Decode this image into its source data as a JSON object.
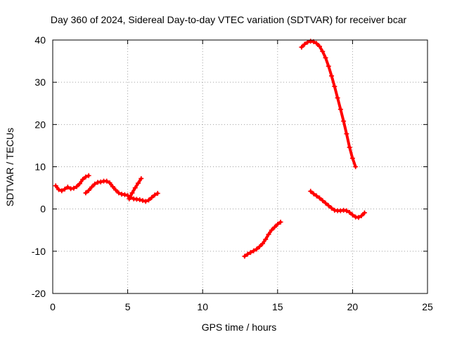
{
  "chart_data": {
    "type": "scatter",
    "title": "Day 360 of 2024, Sidereal Day-to-day VTEC variation (SDTVAR) for receiver bcar",
    "xlabel": "GPS time / hours",
    "ylabel": "SDTVAR / TECUs",
    "xlim": [
      0,
      25
    ],
    "ylim": [
      -20,
      40
    ],
    "xticks": [
      0,
      5,
      10,
      15,
      20,
      25
    ],
    "yticks": [
      -20,
      -10,
      0,
      10,
      20,
      30,
      40
    ],
    "grid": true,
    "legend": "none",
    "marker": "plus",
    "color": "#ff0000",
    "segments": [
      [
        [
          0.2,
          5.5
        ],
        [
          0.4,
          4.6
        ],
        [
          0.6,
          4.3
        ],
        [
          0.8,
          4.7
        ],
        [
          1.0,
          5.2
        ],
        [
          1.2,
          4.8
        ],
        [
          1.4,
          4.9
        ],
        [
          1.6,
          5.3
        ],
        [
          1.8,
          6.0
        ],
        [
          2.0,
          7.0
        ],
        [
          2.2,
          7.6
        ],
        [
          2.4,
          7.9
        ]
      ],
      [
        [
          2.2,
          3.8
        ],
        [
          2.4,
          4.4
        ],
        [
          2.6,
          5.2
        ],
        [
          2.8,
          5.9
        ],
        [
          3.0,
          6.3
        ],
        [
          3.2,
          6.4
        ],
        [
          3.4,
          6.6
        ],
        [
          3.6,
          6.6
        ],
        [
          3.8,
          6.2
        ],
        [
          4.0,
          5.3
        ],
        [
          4.2,
          4.5
        ],
        [
          4.4,
          3.8
        ],
        [
          4.6,
          3.5
        ],
        [
          4.8,
          3.4
        ],
        [
          5.0,
          3.2
        ],
        [
          5.2,
          2.7
        ],
        [
          5.4,
          2.4
        ],
        [
          5.6,
          2.3
        ],
        [
          5.8,
          2.2
        ],
        [
          6.0,
          2.0
        ],
        [
          6.2,
          1.8
        ],
        [
          6.4,
          2.1
        ],
        [
          6.6,
          2.7
        ],
        [
          6.8,
          3.3
        ],
        [
          7.0,
          3.7
        ]
      ],
      [
        [
          5.1,
          2.4
        ],
        [
          5.3,
          3.8
        ],
        [
          5.5,
          5.0
        ],
        [
          5.7,
          6.1
        ],
        [
          5.9,
          7.2
        ]
      ],
      [
        [
          12.8,
          -11.2
        ],
        [
          13.0,
          -10.7
        ],
        [
          13.2,
          -10.3
        ],
        [
          13.4,
          -9.9
        ],
        [
          13.6,
          -9.5
        ],
        [
          13.8,
          -8.9
        ],
        [
          14.0,
          -8.2
        ],
        [
          14.2,
          -7.2
        ],
        [
          14.4,
          -6.0
        ],
        [
          14.6,
          -5.0
        ],
        [
          14.8,
          -4.3
        ],
        [
          15.0,
          -3.6
        ],
        [
          15.2,
          -3.1
        ]
      ],
      [
        [
          16.6,
          38.3
        ],
        [
          16.8,
          39.0
        ],
        [
          17.0,
          39.5
        ],
        [
          17.2,
          39.7
        ],
        [
          17.4,
          39.6
        ],
        [
          17.6,
          39.2
        ],
        [
          17.8,
          38.5
        ],
        [
          18.0,
          37.3
        ],
        [
          18.2,
          35.8
        ],
        [
          18.4,
          33.8
        ],
        [
          18.6,
          31.5
        ],
        [
          18.8,
          29.0
        ],
        [
          19.0,
          26.3
        ],
        [
          19.2,
          23.6
        ],
        [
          19.4,
          20.8
        ],
        [
          19.6,
          17.8
        ],
        [
          19.8,
          14.6
        ],
        [
          20.0,
          12.0
        ],
        [
          20.2,
          10.0
        ]
      ],
      [
        [
          17.2,
          4.2
        ],
        [
          17.4,
          3.6
        ],
        [
          17.6,
          3.1
        ],
        [
          17.8,
          2.6
        ],
        [
          18.0,
          2.0
        ],
        [
          18.2,
          1.4
        ],
        [
          18.4,
          0.8
        ],
        [
          18.6,
          0.2
        ],
        [
          18.8,
          -0.3
        ],
        [
          19.0,
          -0.4
        ],
        [
          19.2,
          -0.4
        ],
        [
          19.4,
          -0.3
        ],
        [
          19.6,
          -0.4
        ],
        [
          19.8,
          -0.8
        ],
        [
          20.0,
          -1.4
        ],
        [
          20.2,
          -1.9
        ],
        [
          20.4,
          -2.0
        ],
        [
          20.6,
          -1.6
        ],
        [
          20.8,
          -0.9
        ]
      ]
    ]
  }
}
